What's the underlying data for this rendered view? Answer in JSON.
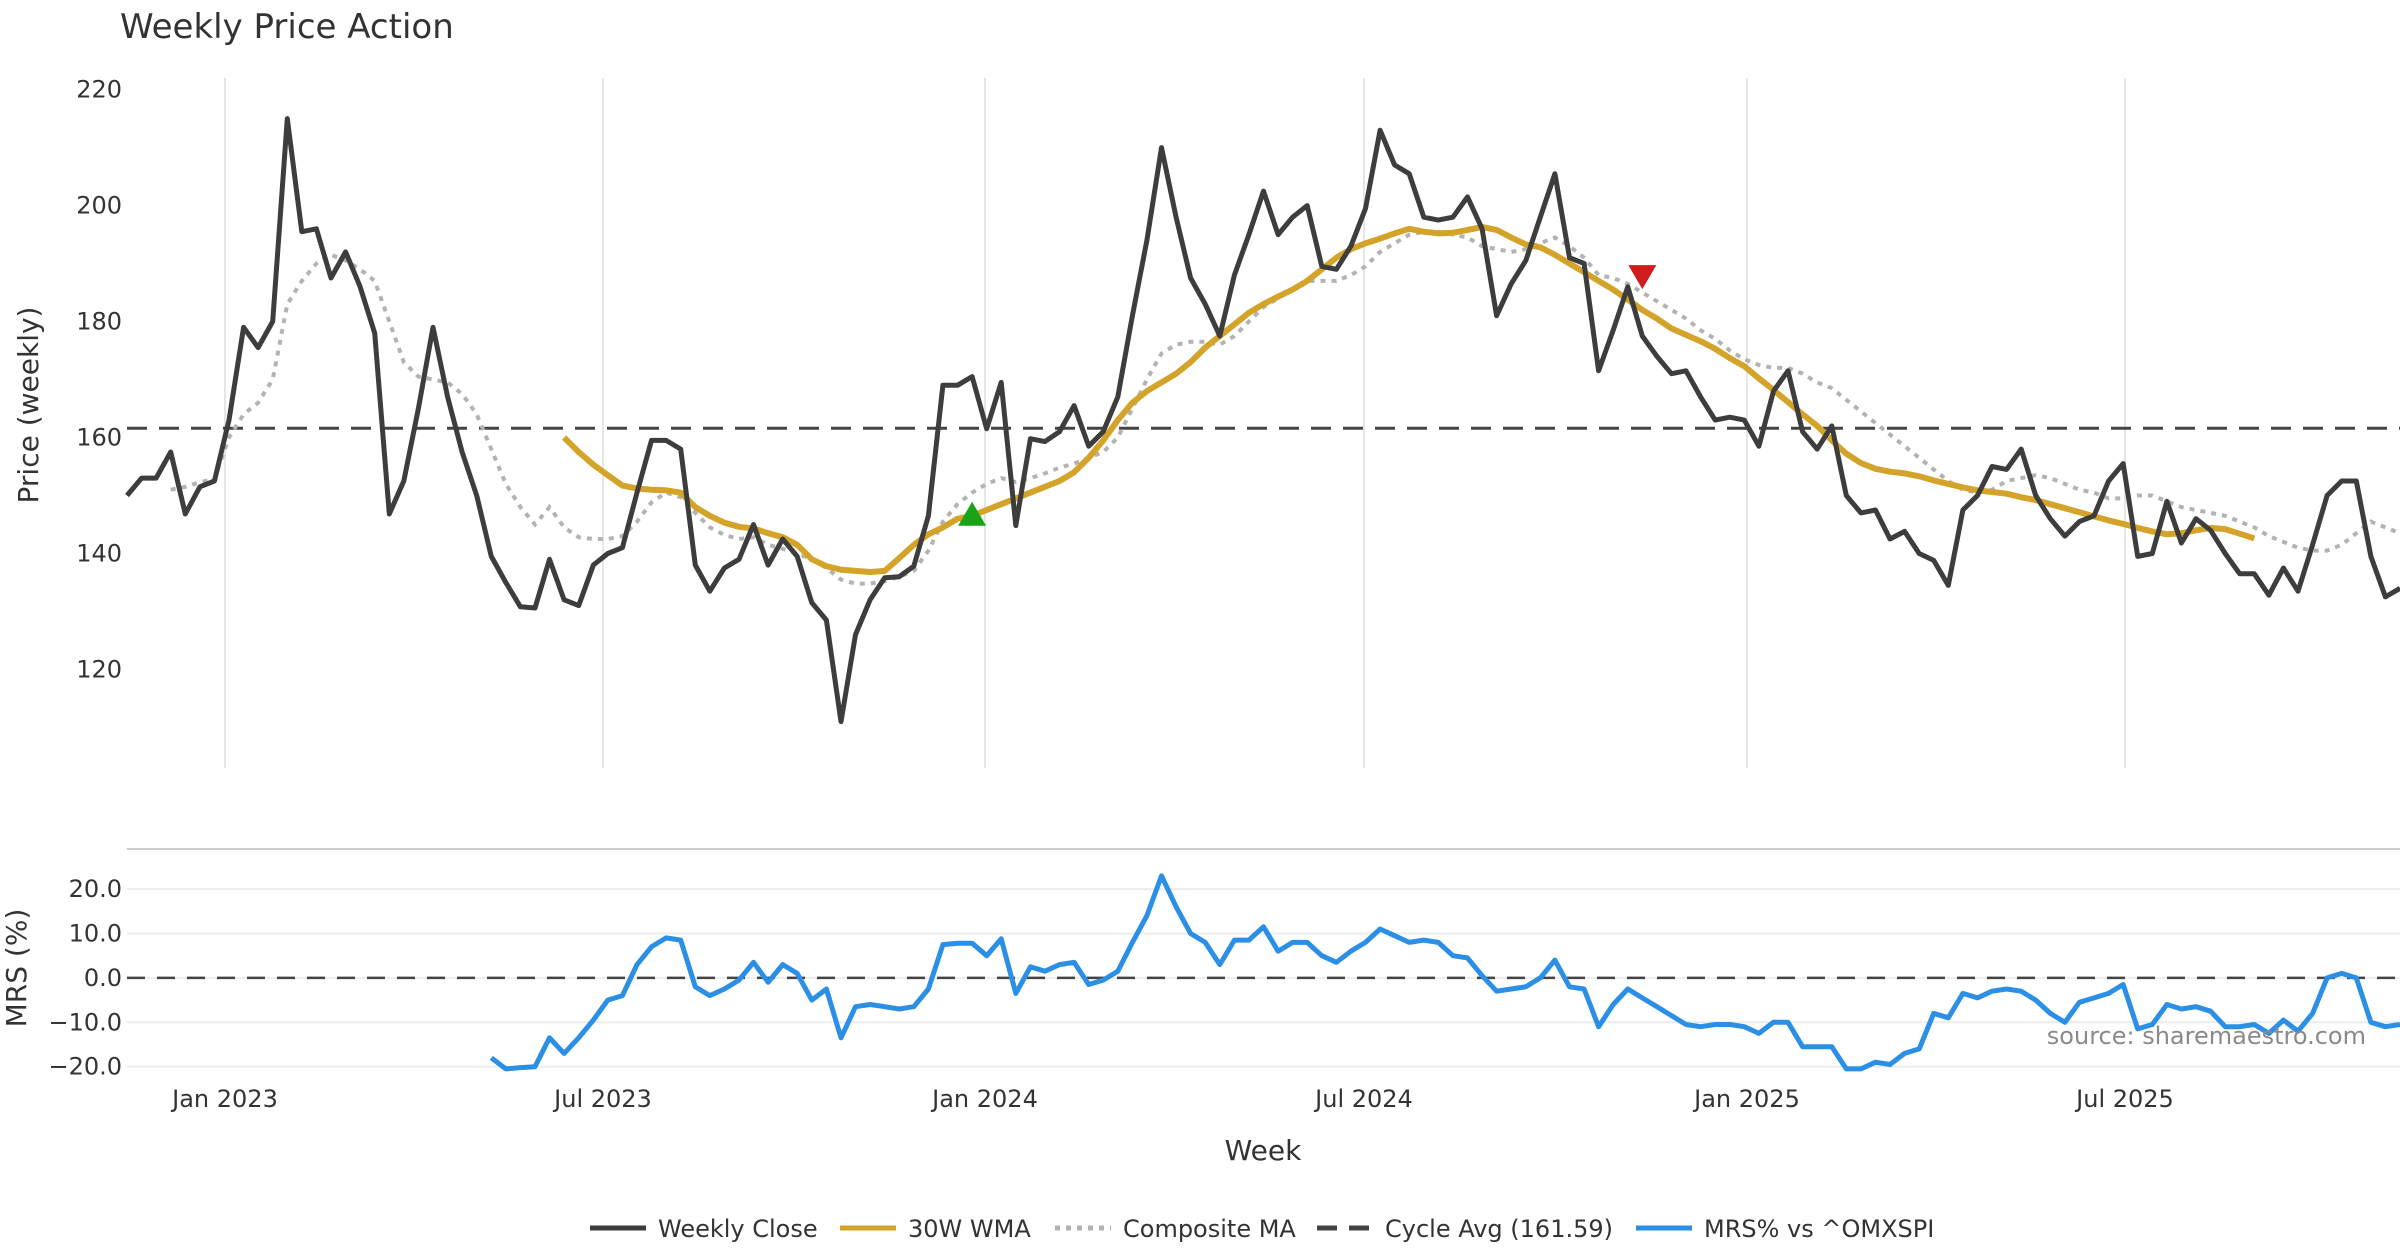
{
  "chart_data": {
    "title": "Weekly Price Action",
    "xlabel": "Week",
    "source_note": "source: sharemaestro.com",
    "x_ticks": [
      "Jan 2023",
      "Jul 2023",
      "Jan 2024",
      "Jul 2024",
      "Jan 2025",
      "Jul 2025"
    ],
    "price_panel": {
      "type": "line",
      "ylabel": "Price (weekly)",
      "ylim": [
        103,
        222
      ],
      "yticks": [
        120,
        140,
        160,
        180,
        200,
        220
      ],
      "weekly_close": [
        150.0,
        153.0,
        153.0,
        157.5,
        146.8,
        151.5,
        152.5,
        163.0,
        179.0,
        175.5,
        180.0,
        215.0,
        195.5,
        196.0,
        187.5,
        192.0,
        186.0,
        178.0,
        146.8,
        152.5,
        165.0,
        179.0,
        167.0,
        157.5,
        150.0,
        139.5,
        135.0,
        130.8,
        130.6,
        139.0,
        132.0,
        131.0,
        138.0,
        140.0,
        141.0,
        150.5,
        159.5,
        159.5,
        158.0,
        138.0,
        133.5,
        137.5,
        139.0,
        145.0,
        138.0,
        142.5,
        139.5,
        131.5,
        128.5,
        111.0,
        126.0,
        132.0,
        135.8,
        136.0,
        137.8,
        146.5,
        169.0,
        169.0,
        170.5,
        161.5,
        169.5,
        144.8,
        159.8,
        159.3,
        161.0,
        165.5,
        158.5,
        161.0,
        167.0,
        181.0,
        194.0,
        210.0,
        198.0,
        187.5,
        183.0,
        177.5,
        188.0,
        195.0,
        202.5,
        195.0,
        198.0,
        200.0,
        189.5,
        189.0,
        193.0,
        199.5,
        213.0,
        207.0,
        205.5,
        198.0,
        197.5,
        198.0,
        201.5,
        196.0,
        181.0,
        186.5,
        190.5,
        198.0,
        205.5,
        191.0,
        190.0,
        171.5,
        178.5,
        186.0,
        177.5,
        174.0,
        171.0,
        171.5,
        167.0,
        163.0,
        163.5,
        163.0,
        158.5,
        168.0,
        171.5,
        161.0,
        158.0,
        162.0,
        150.0,
        147.0,
        147.5,
        142.5,
        143.8,
        140.0,
        138.8,
        134.5,
        147.5,
        150.0,
        155.0,
        154.5,
        158.0,
        150.0,
        146.0,
        143.0,
        145.5,
        146.5,
        152.5,
        155.5,
        139.5,
        140.0,
        149.0,
        141.8,
        146.0,
        144.0,
        140.0,
        136.5,
        136.5,
        132.8,
        137.5,
        133.5,
        141.5,
        150.0,
        152.5,
        152.5,
        139.5,
        132.5,
        134.0
      ],
      "wma_30w": [
        160.0,
        157.5,
        155.3,
        153.5,
        151.7,
        151.2,
        151.0,
        150.9,
        150.5,
        148.0,
        146.5,
        145.3,
        144.6,
        144.3,
        143.5,
        142.8,
        141.5,
        139.0,
        137.8,
        137.2,
        137.0,
        136.8,
        137.0,
        139.2,
        141.5,
        143.3,
        144.5,
        146.0,
        146.5,
        147.5,
        148.5,
        149.5,
        150.5,
        151.5,
        152.5,
        154.0,
        156.5,
        159.5,
        163.0,
        166.0,
        168.0,
        169.5,
        171.0,
        173.0,
        175.5,
        177.5,
        179.5,
        181.5,
        183.0,
        184.3,
        185.5,
        187.0,
        189.0,
        191.0,
        192.5,
        193.5,
        194.3,
        195.2,
        196.0,
        195.5,
        195.2,
        195.3,
        195.8,
        196.3,
        195.8,
        194.5,
        193.3,
        192.8,
        191.5,
        190.0,
        188.5,
        187.0,
        185.5,
        183.8,
        182.0,
        180.5,
        178.8,
        177.7,
        176.6,
        175.3,
        173.7,
        172.3,
        170.2,
        168.2,
        166.1,
        164.0,
        162.0,
        159.5,
        157.2,
        155.6,
        154.6,
        154.1,
        153.8,
        153.3,
        152.6,
        152.0,
        151.4,
        150.9,
        150.6,
        150.3,
        149.7,
        149.2,
        148.5,
        147.8,
        147.1,
        146.4,
        145.7,
        145.1,
        144.4,
        143.8,
        143.3,
        143.5,
        144.0,
        144.4,
        144.2,
        143.4,
        142.6
      ],
      "composite_ma": [
        null,
        null,
        null,
        151.0,
        151.5,
        152.3,
        152.8,
        160.0,
        164.0,
        166.0,
        170.0,
        183.0,
        187.0,
        190.0,
        191.5,
        190.5,
        189.0,
        187.0,
        180.0,
        173.0,
        170.5,
        170.0,
        169.5,
        167.5,
        164.0,
        158.0,
        152.0,
        148.0,
        145.0,
        148.0,
        144.5,
        142.8,
        142.5,
        142.5,
        143.0,
        145.5,
        148.8,
        150.5,
        149.7,
        147.0,
        144.5,
        143.2,
        142.5,
        142.8,
        141.5,
        140.8,
        140.0,
        139.0,
        137.5,
        135.5,
        134.8,
        134.8,
        135.2,
        136.0,
        137.0,
        140.5,
        145.5,
        148.5,
        150.5,
        152.0,
        153.0,
        152.3,
        153.0,
        153.8,
        154.8,
        155.5,
        156.5,
        157.5,
        160.0,
        165.0,
        170.0,
        174.5,
        176.0,
        176.5,
        176.5,
        176.0,
        177.5,
        180.0,
        182.5,
        184.0,
        185.5,
        187.0,
        187.0,
        187.0,
        188.0,
        189.5,
        192.0,
        193.5,
        195.0,
        195.5,
        195.5,
        195.0,
        194.5,
        193.0,
        192.5,
        192.0,
        192.5,
        193.5,
        194.5,
        193.0,
        191.0,
        188.0,
        187.5,
        186.5,
        185.0,
        183.5,
        182.0,
        180.5,
        178.5,
        177.0,
        175.0,
        173.5,
        172.5,
        172.0,
        172.0,
        171.0,
        169.5,
        168.5,
        166.5,
        164.5,
        162.5,
        160.5,
        158.5,
        156.5,
        154.5,
        152.5,
        151.0,
        150.5,
        151.0,
        152.5,
        153.0,
        153.5,
        153.0,
        152.0,
        151.0,
        150.5,
        149.5,
        149.5,
        150.0,
        150.0,
        149.0,
        148.0,
        147.5,
        147.0,
        146.5,
        145.5,
        144.5,
        143.0,
        142.0,
        141.0,
        140.5,
        140.5,
        141.5,
        143.5,
        145.5,
        144.5,
        143.5
      ],
      "cycle_avg": 161.59,
      "buy_signal_week_index": 58,
      "buy_signal_price": 146.5,
      "sell_signal_week_index": 104,
      "sell_signal_price": 188.0
    },
    "mrs_panel": {
      "type": "line",
      "ylabel": "MRS (%)",
      "ylim": [
        -23,
        27
      ],
      "yticks": [
        20.0,
        10.0,
        0.0,
        -10.0,
        -20.0
      ],
      "ytick_labels": [
        "20.0",
        "10.0",
        "0.0",
        "−10.0",
        "−20.0"
      ],
      "mrs_start_week_index": 25,
      "mrs_values": [
        -18.0,
        -20.5,
        -20.2,
        -20.0,
        -13.5,
        -17.0,
        -13.5,
        -9.5,
        -5.0,
        -4.0,
        3.0,
        7.0,
        9.0,
        8.5,
        -2.0,
        -4.0,
        -2.5,
        -0.5,
        3.5,
        -1.0,
        3.0,
        1.0,
        -5.0,
        -2.5,
        -13.5,
        -6.5,
        -6.0,
        -6.5,
        -7.0,
        -6.5,
        -2.5,
        7.5,
        7.8,
        7.8,
        5.0,
        8.8,
        -3.5,
        2.5,
        1.5,
        3.0,
        3.5,
        -1.5,
        -0.5,
        1.5,
        8.0,
        14.0,
        23.0,
        16.0,
        10.0,
        8.0,
        3.0,
        8.5,
        8.5,
        11.5,
        6.0,
        8.0,
        8.0,
        5.0,
        3.5,
        6.0,
        8.0,
        11.0,
        9.5,
        8.0,
        8.5,
        8.0,
        5.0,
        4.5,
        0.5,
        -3.0,
        -2.5,
        -2.0,
        0.0,
        4.0,
        -2.0,
        -2.5,
        -11.0,
        -6.0,
        -2.5,
        -4.5,
        -6.5,
        -8.5,
        -10.5,
        -11.0,
        -10.5,
        -10.5,
        -11.0,
        -12.5,
        -10.0,
        -10.0,
        -15.5,
        -15.5,
        -15.5,
        -20.5,
        -20.5,
        -19.0,
        -19.5,
        -17.0,
        -16.0,
        -8.0,
        -9.0,
        -3.5,
        -4.5,
        -3.0,
        -2.5,
        -3.0,
        -5.0,
        -8.0,
        -10.0,
        -5.5,
        -4.5,
        -3.5,
        -1.5,
        -11.5,
        -10.5,
        -6.0,
        -7.0,
        -6.5,
        -7.5,
        -11.0,
        -11.0,
        -10.5,
        -12.5,
        -9.5,
        -12.0,
        -8.0,
        0.0,
        1.0,
        0.0,
        -10.0,
        -11.0,
        -10.5
      ],
      "zero_line": 0.0
    },
    "legend": [
      {
        "label": "Weekly Close",
        "color": "#3d3d3d",
        "style": "solid"
      },
      {
        "label": "30W WMA",
        "color": "#d4a42a",
        "style": "solid"
      },
      {
        "label": "Composite MA",
        "color": "#b3b3b3",
        "style": "dotted"
      },
      {
        "label": "Cycle Avg (161.59)",
        "color": "#444444",
        "style": "dashed"
      },
      {
        "label": "MRS% vs ^OMXSPI",
        "color": "#2b8fe6",
        "style": "solid"
      }
    ],
    "colors": {
      "close": "#3d3d3d",
      "wma": "#d4a42a",
      "composite": "#b3b3b3",
      "cycle": "#444444",
      "mrs": "#2b8fe6",
      "buy": "#18a318",
      "sell": "#d01c1c"
    }
  }
}
